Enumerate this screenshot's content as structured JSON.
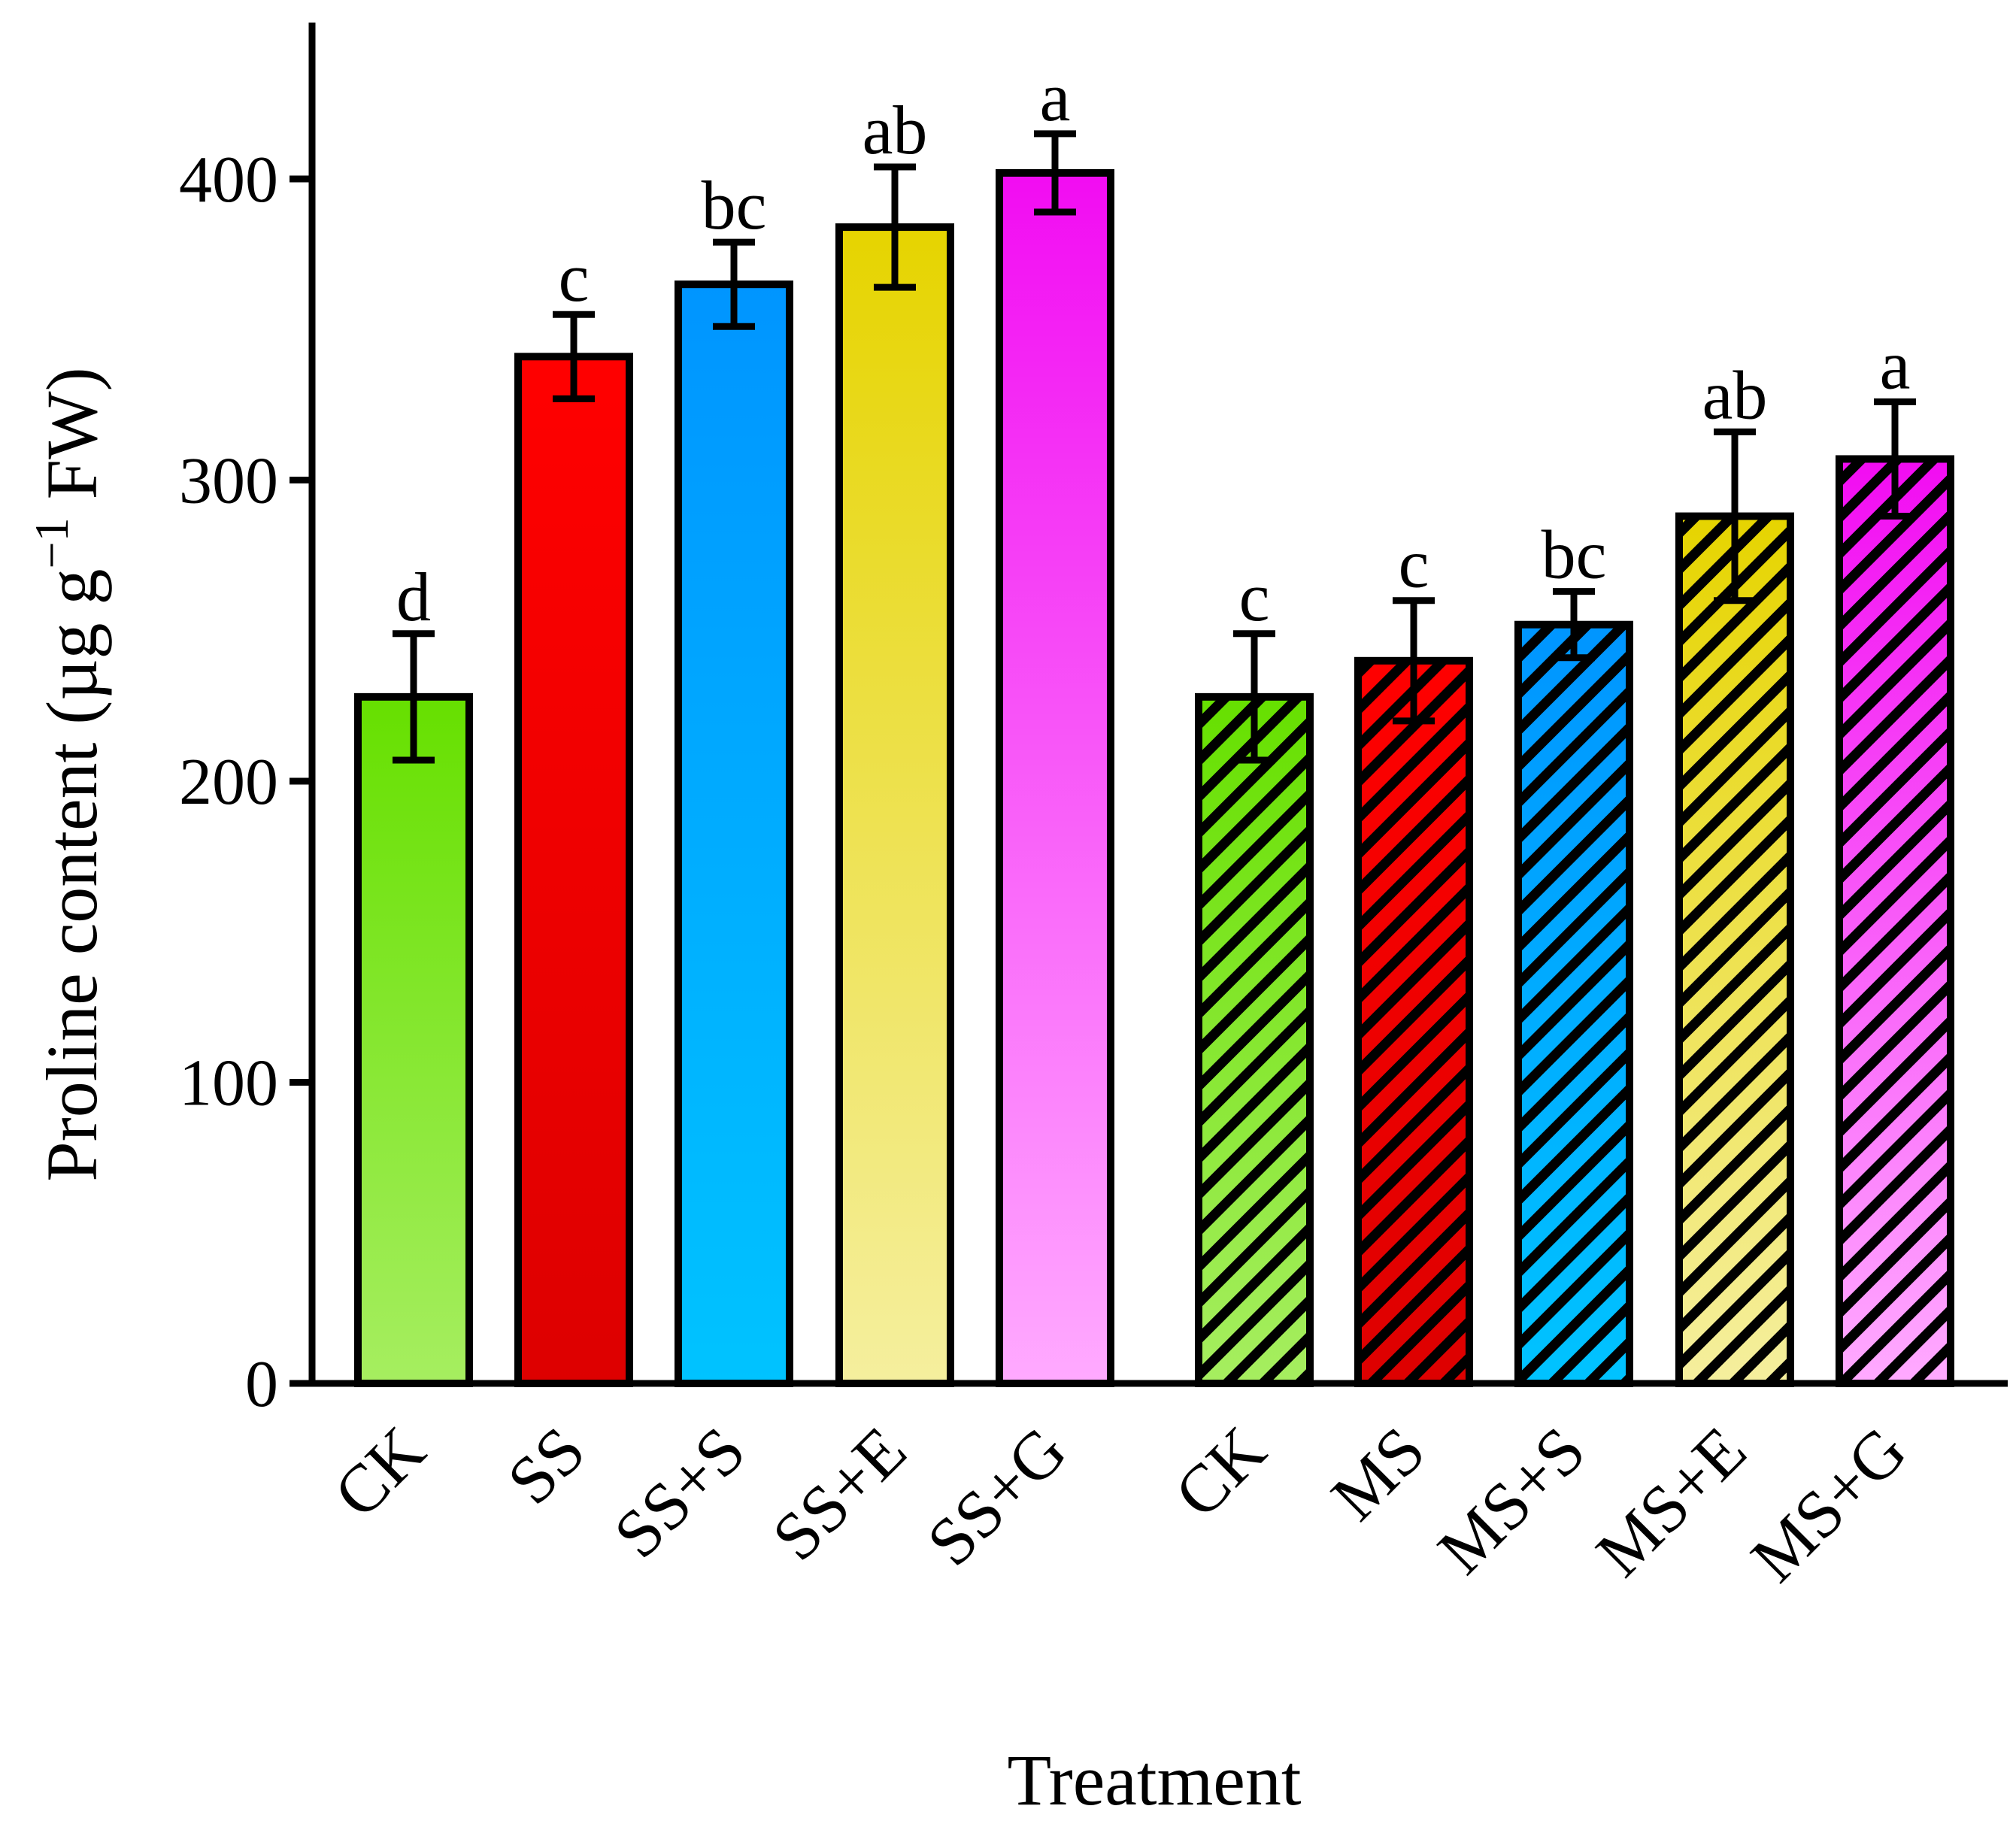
{
  "chart_data": {
    "type": "bar",
    "title": "",
    "xlabel": "Treatment",
    "ylabel_parts": {
      "main": "Proline content (µg g",
      "superscript": "−1",
      "tail": " FW)"
    },
    "ylim": [
      0,
      450
    ],
    "yticks": [
      0,
      100,
      200,
      300,
      400
    ],
    "grid": false,
    "groups": [
      {
        "name": "SS",
        "pattern": "solid",
        "bars": [
          {
            "category": "CK",
            "value": 228,
            "error": 21,
            "letter": "d",
            "color_top": "#66e000",
            "color_bottom": "#a6ee60"
          },
          {
            "category": "SS",
            "value": 341,
            "error": 14,
            "letter": "c",
            "color_top": "#ff0000",
            "color_bottom": "#dd0000"
          },
          {
            "category": "SS+S",
            "value": 365,
            "error": 14,
            "letter": "bc",
            "color_top": "#0095ff",
            "color_bottom": "#00c3ff"
          },
          {
            "category": "SS+E",
            "value": 384,
            "error": 20,
            "letter": "ab",
            "color_top": "#e6d400",
            "color_bottom": "#f5ef9e"
          },
          {
            "category": "SS+G",
            "value": 402,
            "error": 13,
            "letter": "a",
            "color_top": "#f20cf2",
            "color_bottom": "#ffaaff"
          }
        ]
      },
      {
        "name": "MS",
        "pattern": "hatched",
        "bars": [
          {
            "category": "CK",
            "value": 228,
            "error": 21,
            "letter": "c",
            "color_top": "#66e000",
            "color_bottom": "#a6ee60"
          },
          {
            "category": "MS",
            "value": 240,
            "error": 20,
            "letter": "c",
            "color_top": "#ff0000",
            "color_bottom": "#dd0000"
          },
          {
            "category": "MS+S",
            "value": 252,
            "error": 11,
            "letter": "bc",
            "color_top": "#0095ff",
            "color_bottom": "#00c3ff"
          },
          {
            "category": "MS+E",
            "value": 288,
            "error": 28,
            "letter": "ab",
            "color_top": "#e6d400",
            "color_bottom": "#f5ef9e"
          },
          {
            "category": "MS+G",
            "value": 307,
            "error": 19,
            "letter": "a",
            "color_top": "#f20cf2",
            "color_bottom": "#ffaaff"
          }
        ]
      }
    ]
  }
}
